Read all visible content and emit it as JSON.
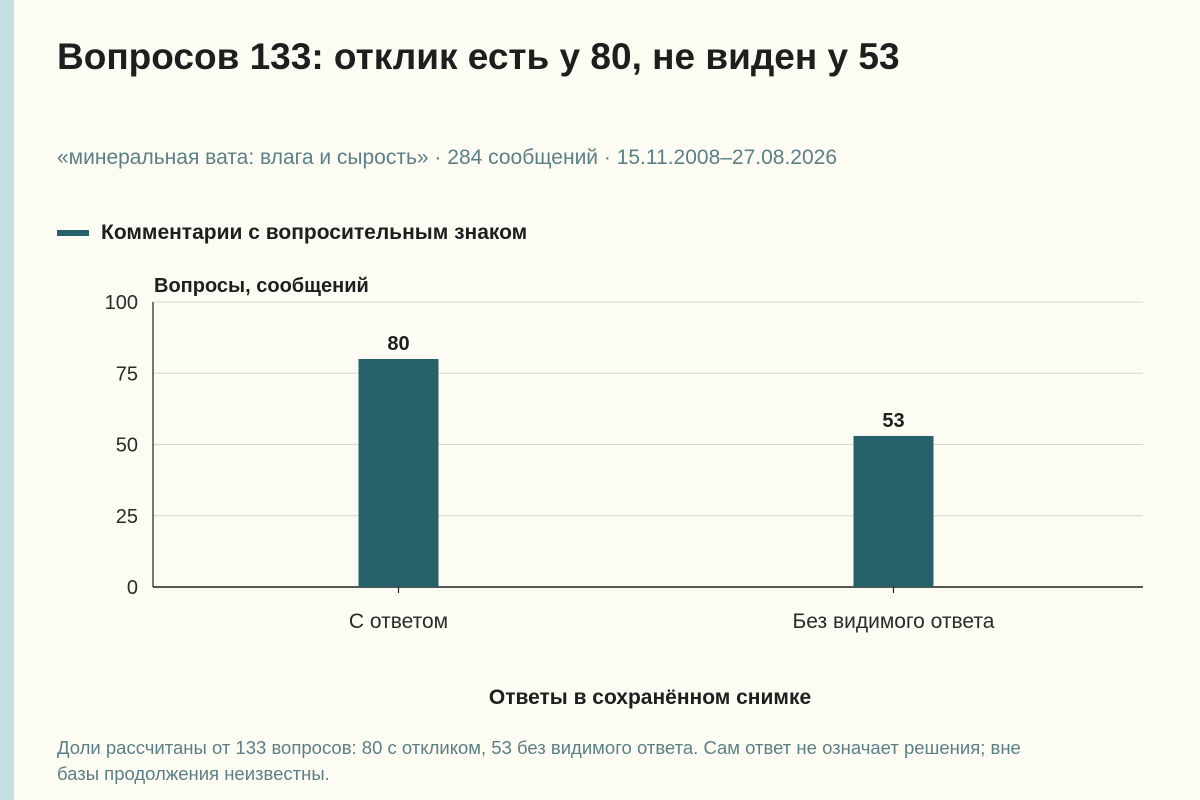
{
  "title": "Вопросов 133: отклик есть у 80, не виден у 53",
  "subtitle": "«минеральная вата: влага и сырость» · 284 сообщений · 15.11.2008–27.08.2026",
  "note": "Доли рассчитаны от 133 вопросов: 80 с откликом, 53 без видимого ответа. Сам ответ не означает решения; вне базы продолжения неизвестны.",
  "colors": {
    "background": "#fdfcf3",
    "side_stripe": "#c3dfe0",
    "bar": "#26606b",
    "grid": "#d6d6d0",
    "axis": "#1e1e1e",
    "muted_text": "#5b7f86"
  },
  "chart_data": {
    "type": "bar",
    "title": "Вопросов 133: отклик есть у 80, не виден у 53",
    "xlabel": "Ответы в сохранённом снимке",
    "ylabel": "Вопросы, сообщений",
    "categories": [
      "С ответом",
      "Без видимого ответа"
    ],
    "series": [
      {
        "name": "Комментарии с вопросительным знаком",
        "values": [
          80,
          53
        ],
        "color": "#26606b"
      }
    ],
    "ylim": [
      0,
      100
    ],
    "yticks": [
      0,
      25,
      50,
      75,
      100
    ],
    "data_labels": [
      "80",
      "53"
    ],
    "grid": true,
    "legend": "top-left"
  }
}
